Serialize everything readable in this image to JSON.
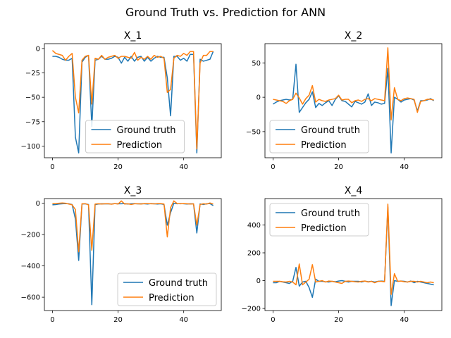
{
  "figure": {
    "suptitle": "Ground Truth vs. Prediction for ANN"
  },
  "legend_labels": [
    "Ground truth",
    "Prediction"
  ],
  "colors": {
    "ground_truth": "#1f77b4",
    "prediction": "#ff7f0e"
  },
  "chart_data": [
    {
      "type": "line",
      "title": "X_1",
      "xlim": [
        -2.45,
        51.45
      ],
      "ylim": [
        -112,
        5
      ],
      "xticks": [
        0,
        20,
        40
      ],
      "yticks": [
        0,
        -25,
        -50,
        -75,
        -100
      ],
      "legend_position": "lower-center",
      "grid": false,
      "x": [
        0,
        1,
        2,
        3,
        4,
        5,
        6,
        7,
        8,
        9,
        10,
        11,
        12,
        13,
        14,
        15,
        16,
        17,
        18,
        19,
        20,
        21,
        22,
        23,
        24,
        25,
        26,
        27,
        28,
        29,
        30,
        31,
        32,
        33,
        34,
        35,
        36,
        37,
        38,
        39,
        40,
        41,
        42,
        43,
        44,
        45,
        46,
        47,
        48,
        49
      ],
      "series": [
        {
          "name": "Ground truth",
          "values": [
            -8,
            -8,
            -9,
            -11,
            -12,
            -12,
            -10,
            -91,
            -107,
            -14,
            -9,
            -7,
            -80,
            -12,
            -11,
            -8,
            -11,
            -11,
            -10,
            -8,
            -9,
            -15,
            -9,
            -13,
            -8,
            -13,
            -9,
            -8,
            -13,
            -9,
            -13,
            -10,
            -8,
            -9,
            -9,
            -30,
            -69,
            -8,
            -8,
            -12,
            -10,
            -13,
            -6,
            -6,
            -107,
            -11,
            -13,
            -12,
            -11,
            -3
          ]
        },
        {
          "name": "Prediction",
          "values": [
            -2,
            -5,
            -6,
            -7,
            -12,
            -8,
            -5,
            -50,
            -66,
            -12,
            -8,
            -7,
            -57,
            -10,
            -11,
            -7,
            -11,
            -9,
            -8,
            -7,
            -10,
            -8,
            -8,
            -9,
            -10,
            -4,
            -12,
            -9,
            -11,
            -8,
            -11,
            -7,
            -9,
            -8,
            -10,
            -45,
            -42,
            -10,
            -7,
            -8,
            -5,
            -7,
            -3,
            -3,
            -103,
            -15,
            -7,
            -7,
            -3,
            -3
          ]
        }
      ]
    },
    {
      "type": "line",
      "title": "X_2",
      "xlim": [
        -2.45,
        51.45
      ],
      "ylim": [
        -88,
        78
      ],
      "xticks": [
        0,
        20,
        40
      ],
      "yticks": [
        50,
        0,
        -50
      ],
      "legend_position": "lower-left",
      "grid": false,
      "x": [
        0,
        1,
        2,
        3,
        4,
        5,
        6,
        7,
        8,
        9,
        10,
        11,
        12,
        13,
        14,
        15,
        16,
        17,
        18,
        19,
        20,
        21,
        22,
        23,
        24,
        25,
        26,
        27,
        28,
        29,
        30,
        31,
        32,
        33,
        34,
        35,
        36,
        37,
        38,
        39,
        40,
        41,
        42,
        43,
        44,
        45,
        46,
        47,
        48,
        49
      ],
      "series": [
        {
          "name": "Ground truth",
          "values": [
            -10,
            -7,
            -5,
            -4,
            -3,
            -4,
            -3,
            48,
            -22,
            -15,
            -8,
            -3,
            8,
            -15,
            -9,
            -12,
            -8,
            -5,
            -12,
            -3,
            2,
            -5,
            -6,
            -10,
            -14,
            -6,
            -8,
            -10,
            -7,
            5,
            -12,
            -7,
            -8,
            -10,
            -9,
            42,
            -81,
            0,
            -3,
            -7,
            -4,
            -3,
            -2,
            -4,
            -20,
            -5,
            -5,
            -4,
            -2,
            -5
          ]
        },
        {
          "name": "Prediction",
          "values": [
            -3,
            -4,
            -5,
            -6,
            -9,
            -5,
            -3,
            6,
            -1,
            -10,
            -2,
            3,
            17,
            -7,
            -3,
            -5,
            -6,
            -4,
            -3,
            -2,
            3,
            -4,
            -3,
            -3,
            -8,
            -5,
            -4,
            -6,
            -3,
            -2,
            -5,
            -2,
            -3,
            -4,
            -5,
            72,
            -33,
            14,
            -3,
            -5,
            -2,
            -1,
            -2,
            -3,
            -22,
            -6,
            -5,
            -3,
            -3,
            -4
          ]
        }
      ]
    },
    {
      "type": "line",
      "title": "X_3",
      "xlim": [
        -2.45,
        51.45
      ],
      "ylim": [
        -685,
        30
      ],
      "xticks": [
        0,
        20,
        40
      ],
      "yticks": [
        0,
        -200,
        -400,
        -600
      ],
      "legend_position": "lower-right",
      "grid": false,
      "x": [
        0,
        1,
        2,
        3,
        4,
        5,
        6,
        7,
        8,
        9,
        10,
        11,
        12,
        13,
        14,
        15,
        16,
        17,
        18,
        19,
        20,
        21,
        22,
        23,
        24,
        25,
        26,
        27,
        28,
        29,
        30,
        31,
        32,
        33,
        34,
        35,
        36,
        37,
        38,
        39,
        40,
        41,
        42,
        43,
        44,
        45,
        46,
        47,
        48,
        49
      ],
      "series": [
        {
          "name": "Ground truth",
          "values": [
            -10,
            -8,
            -5,
            -3,
            -2,
            -3,
            -8,
            -100,
            -365,
            -5,
            -3,
            -8,
            -648,
            -8,
            -5,
            -3,
            -4,
            -3,
            -5,
            -2,
            -3,
            -3,
            -2,
            -5,
            -3,
            -2,
            -4,
            -3,
            -3,
            -5,
            -2,
            -3,
            -5,
            -3,
            -8,
            -140,
            -60,
            0,
            -3,
            -2,
            -3,
            -5,
            -3,
            -4,
            -190,
            -4,
            -8,
            -3,
            -2,
            -15
          ]
        },
        {
          "name": "Prediction",
          "values": [
            -2,
            -2,
            0,
            2,
            0,
            -5,
            -10,
            -40,
            -310,
            -3,
            -3,
            -10,
            -300,
            -5,
            -3,
            -5,
            -3,
            -3,
            -6,
            -2,
            -5,
            15,
            -5,
            -3,
            -8,
            -3,
            -3,
            -5,
            -2,
            -2,
            -3,
            -4,
            -2,
            -2,
            -5,
            -215,
            -28,
            15,
            -2,
            -3,
            -2,
            -3,
            -5,
            -4,
            -140,
            -8,
            -3,
            -5,
            2,
            -5
          ]
        }
      ]
    },
    {
      "type": "line",
      "title": "X_4",
      "xlim": [
        -2.45,
        51.45
      ],
      "ylim": [
        -215,
        590
      ],
      "xticks": [
        0,
        20,
        40
      ],
      "yticks": [
        400,
        200,
        0,
        -200
      ],
      "legend_position": "upper-left",
      "grid": false,
      "x": [
        0,
        1,
        2,
        3,
        4,
        5,
        6,
        7,
        8,
        9,
        10,
        11,
        12,
        13,
        14,
        15,
        16,
        17,
        18,
        19,
        20,
        21,
        22,
        23,
        24,
        25,
        26,
        27,
        28,
        29,
        30,
        31,
        32,
        33,
        34,
        35,
        36,
        37,
        38,
        39,
        40,
        41,
        42,
        43,
        44,
        45,
        46,
        47,
        48,
        49
      ],
      "series": [
        {
          "name": "Ground truth",
          "values": [
            -15,
            -15,
            -5,
            -10,
            -15,
            -20,
            -5,
            95,
            -40,
            -10,
            -5,
            -50,
            -120,
            10,
            -5,
            -5,
            -8,
            -10,
            -5,
            -8,
            -3,
            0,
            -5,
            -10,
            -5,
            -5,
            -5,
            -10,
            -3,
            -8,
            -5,
            -10,
            -5,
            -3,
            -5,
            530,
            -180,
            0,
            -5,
            -3,
            -5,
            -10,
            -3,
            -15,
            -5,
            -10,
            -15,
            -20,
            -25,
            -30
          ]
        },
        {
          "name": "Prediction",
          "values": [
            -5,
            -5,
            -5,
            -8,
            -10,
            -5,
            -10,
            -30,
            120,
            -30,
            -10,
            10,
            115,
            -10,
            -5,
            0,
            -10,
            -3,
            -5,
            -10,
            -15,
            -20,
            -5,
            -3,
            -5,
            -8,
            -10,
            -5,
            -3,
            -10,
            -5,
            -15,
            -5,
            -5,
            -8,
            550,
            -100,
            50,
            -5,
            -3,
            -8,
            -10,
            -5,
            -5,
            -10,
            -5,
            -10,
            -15,
            -10,
            -15
          ]
        }
      ]
    }
  ]
}
